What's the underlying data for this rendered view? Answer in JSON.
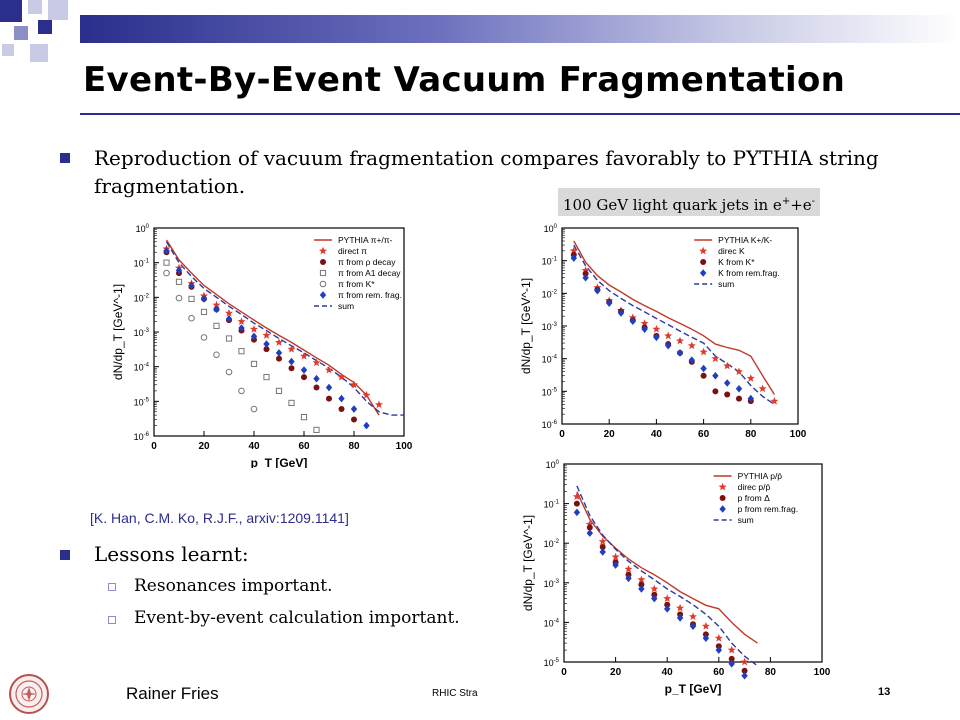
{
  "slide": {
    "title": "Event-By-Event Vacuum Fragmentation",
    "bullet1": "Reproduction of vacuum fragmentation compares favorably to PYTHIA string fragmentation.",
    "jet_label": "100 GeV light quark jets in e",
    "jet_label_sup1": "+",
    "jet_label_mid": "+e",
    "jet_label_sup2": "-",
    "reference": "[K. Han, C.M. Ko, R.J.F., arxiv:1209.1141]",
    "bullet2": "Lessons learnt:",
    "sub_items": [
      "Resonances important.",
      "Event-by-event calculation important."
    ],
    "footer_author": "Rainer Fries",
    "footer_center": "RHIC Stra",
    "page_number": "13",
    "accent_color": "#2b2e8c",
    "logo_icon": "university-seal-icon"
  },
  "chart_data": [
    {
      "type": "scatter",
      "ylabel": "dN/dp_T [GeV^-1]",
      "xlabel": "p_T [GeV]",
      "xlim": [
        0,
        100
      ],
      "ylim_exp": [
        -6,
        0
      ],
      "x_ticks": [
        "0",
        "20",
        "40",
        "60",
        "80",
        "100"
      ],
      "y_ticks": [
        "10^0",
        "10^-1",
        "10^-2",
        "10^-3",
        "10^-4",
        "10^-5",
        "10^-6"
      ],
      "legend": [
        "PYTHIA π+/π-",
        "direct π",
        "π from ρ decay",
        "π from A1 decay",
        "π from K*",
        "π from rem. frag.",
        "sum"
      ],
      "series": [
        {
          "name": "PYTHIA π+/π-",
          "style": "line",
          "color": "#c0392b",
          "x": [
            5,
            10,
            15,
            20,
            25,
            30,
            35,
            40,
            45,
            50,
            55,
            60,
            65,
            70,
            75,
            80,
            85,
            90
          ],
          "y": [
            0.45,
            0.12,
            0.05,
            0.022,
            0.012,
            0.0065,
            0.0038,
            0.0022,
            0.0013,
            0.0008,
            0.0005,
            0.0003,
            0.00018,
            0.00011,
            6e-05,
            3.5e-05,
            1.5e-05,
            4e-06
          ]
        },
        {
          "name": "sum",
          "style": "dash",
          "color": "#2b3a9c",
          "x": [
            5,
            10,
            15,
            20,
            25,
            30,
            35,
            40,
            45,
            50,
            55,
            60,
            65,
            70,
            75,
            80,
            85,
            90,
            95,
            100
          ],
          "y": [
            0.4,
            0.1,
            0.04,
            0.018,
            0.01,
            0.0055,
            0.0032,
            0.0018,
            0.0011,
            0.00065,
            0.0004,
            0.00025,
            0.00015,
            9e-05,
            5e-05,
            2.5e-05,
            1e-05,
            5e-06,
            4e-06,
            4e-06
          ]
        },
        {
          "name": "direct π",
          "style": "star",
          "color": "#e03a2a",
          "x": [
            5,
            10,
            15,
            20,
            25,
            30,
            35,
            40,
            45,
            50,
            55,
            60,
            65,
            70,
            75,
            80,
            85,
            90
          ],
          "y": [
            0.25,
            0.07,
            0.025,
            0.011,
            0.006,
            0.0035,
            0.002,
            0.0012,
            0.0008,
            0.0005,
            0.00032,
            0.0002,
            0.00013,
            8e-05,
            5e-05,
            3e-05,
            1.5e-05,
            8e-06
          ]
        },
        {
          "name": "π from ρ decay",
          "style": "circle",
          "color": "#7a1212",
          "x": [
            5,
            10,
            15,
            20,
            25,
            30,
            35,
            40,
            45,
            50,
            55,
            60,
            65,
            70,
            75,
            80
          ],
          "y": [
            0.2,
            0.05,
            0.02,
            0.009,
            0.0045,
            0.0022,
            0.0011,
            0.0006,
            0.00032,
            0.00017,
            9e-05,
            5e-05,
            2.5e-05,
            1.2e-05,
            6e-06,
            3e-06
          ]
        },
        {
          "name": "π from A1 decay",
          "style": "square",
          "color": "#777777",
          "x": [
            5,
            10,
            15,
            20,
            25,
            30,
            35,
            40,
            45,
            50,
            55,
            60,
            65
          ],
          "y": [
            0.1,
            0.028,
            0.009,
            0.0038,
            0.0015,
            0.00065,
            0.00028,
            0.00012,
            5e-05,
            2e-05,
            9e-06,
            3.5e-06,
            1.5e-06
          ]
        },
        {
          "name": "π from K*",
          "style": "ocircle",
          "color": "#777777",
          "x": [
            5,
            10,
            15,
            20,
            25,
            30,
            35,
            40
          ],
          "y": [
            0.05,
            0.0095,
            0.0025,
            0.0007,
            0.00022,
            7e-05,
            2e-05,
            6e-06
          ]
        },
        {
          "name": "π from rem. frag.",
          "style": "diamond",
          "color": "#1f3fbf",
          "x": [
            5,
            10,
            15,
            20,
            25,
            30,
            35,
            40,
            45,
            50,
            55,
            60,
            65,
            70,
            75,
            80,
            85
          ],
          "y": [
            0.22,
            0.06,
            0.022,
            0.009,
            0.0045,
            0.0024,
            0.0013,
            0.00075,
            0.00045,
            0.00025,
            0.00014,
            8e-05,
            4.5e-05,
            2.5e-05,
            1.2e-05,
            6e-06,
            2e-06
          ]
        }
      ]
    },
    {
      "type": "scatter",
      "ylabel": "dN/dp_T [GeV^-1]",
      "xlim": [
        0,
        100
      ],
      "ylim_exp": [
        -6,
        0
      ],
      "x_ticks": [
        "0",
        "20",
        "40",
        "60",
        "80",
        "100"
      ],
      "y_ticks": [
        "10^0",
        "10^-1",
        "10^-2",
        "10^-3",
        "10^-4",
        "10^-5",
        "10^-6"
      ],
      "legend": [
        "PYTHIA K+/K-",
        "direc K",
        "K from K*",
        "K from rem.frag.",
        "sum"
      ],
      "series": [
        {
          "name": "PYTHIA K+/K-",
          "style": "line",
          "color": "#c0392b",
          "x": [
            5,
            10,
            15,
            20,
            25,
            30,
            35,
            40,
            45,
            50,
            55,
            60,
            65,
            70,
            75,
            80,
            85,
            90
          ],
          "y": [
            0.4,
            0.09,
            0.035,
            0.018,
            0.011,
            0.0065,
            0.0042,
            0.0028,
            0.0018,
            0.0012,
            0.0008,
            0.0005,
            0.00028,
            0.00022,
            0.00018,
            0.00012,
            3e-05,
            8e-06
          ]
        },
        {
          "name": "sum",
          "style": "dash",
          "color": "#2b3a9c",
          "x": [
            5,
            10,
            15,
            20,
            25,
            30,
            35,
            40,
            45,
            50,
            55,
            60,
            65,
            70,
            75,
            80,
            85,
            90
          ],
          "y": [
            0.3,
            0.07,
            0.025,
            0.012,
            0.007,
            0.0042,
            0.0027,
            0.0017,
            0.0011,
            0.0007,
            0.00045,
            0.0003,
            0.00012,
            7e-05,
            4e-05,
            1.5e-05,
            7e-06,
            4e-06
          ]
        },
        {
          "name": "direc K",
          "style": "star",
          "color": "#e03a2a",
          "x": [
            5,
            10,
            15,
            20,
            25,
            30,
            35,
            40,
            45,
            50,
            55,
            60,
            65,
            70,
            75,
            80,
            85,
            90
          ],
          "y": [
            0.2,
            0.05,
            0.015,
            0.006,
            0.003,
            0.0018,
            0.0012,
            0.0008,
            0.0005,
            0.00035,
            0.00025,
            0.00016,
            0.0001,
            6e-05,
            4e-05,
            2.5e-05,
            1.2e-05,
            5e-06
          ]
        },
        {
          "name": "K from K*",
          "style": "circle",
          "color": "#7a1212",
          "x": [
            5,
            10,
            15,
            20,
            25,
            30,
            35,
            40,
            45,
            50,
            55,
            60,
            65,
            70,
            75,
            80
          ],
          "y": [
            0.15,
            0.04,
            0.013,
            0.0055,
            0.0028,
            0.0015,
            0.0009,
            0.0005,
            0.00028,
            0.00015,
            8e-05,
            3e-05,
            1e-05,
            8e-06,
            6e-06,
            5e-06
          ]
        },
        {
          "name": "K from rem.frag.",
          "style": "diamond",
          "color": "#1f3fbf",
          "x": [
            5,
            10,
            15,
            20,
            25,
            30,
            35,
            40,
            45,
            50,
            55,
            60,
            65,
            70,
            75,
            80
          ],
          "y": [
            0.12,
            0.03,
            0.012,
            0.005,
            0.0025,
            0.0014,
            0.0008,
            0.00045,
            0.00025,
            0.00015,
            9e-05,
            5e-05,
            3e-05,
            1.8e-05,
            1.2e-05,
            6e-06
          ]
        }
      ]
    },
    {
      "type": "scatter",
      "ylabel": "dN/dp_T [GeV^-1]",
      "xlabel": "p_T [GeV]",
      "xlim": [
        0,
        100
      ],
      "ylim_exp": [
        -5,
        0
      ],
      "x_ticks": [
        "0",
        "20",
        "40",
        "60",
        "80",
        "100"
      ],
      "y_ticks": [
        "10^0",
        "10^-1",
        "10^-2",
        "10^-3",
        "10^-4",
        "10^-5"
      ],
      "legend": [
        "PYTHIA p/p̄",
        "direc p/p̄",
        "p from Δ",
        "p from rem.frag.",
        "sum"
      ],
      "series": [
        {
          "name": "PYTHIA p/p̄",
          "style": "line",
          "color": "#c0392b",
          "x": [
            5,
            10,
            15,
            20,
            25,
            30,
            35,
            40,
            45,
            50,
            55,
            60,
            65,
            70,
            75
          ],
          "y": [
            0.2,
            0.04,
            0.015,
            0.0075,
            0.004,
            0.0024,
            0.0016,
            0.001,
            0.0006,
            0.0004,
            0.00027,
            0.00022,
            0.0001,
            5e-05,
            3e-05
          ]
        },
        {
          "name": "sum",
          "style": "dash",
          "color": "#2b3a9c",
          "x": [
            5,
            10,
            15,
            20,
            25,
            30,
            35,
            40,
            45,
            50,
            55,
            60,
            65,
            70,
            75
          ],
          "y": [
            0.28,
            0.05,
            0.016,
            0.007,
            0.0035,
            0.002,
            0.0012,
            0.0007,
            0.00045,
            0.00028,
            0.00016,
            8e-05,
            3e-05,
            1.4e-05,
            8e-06
          ]
        },
        {
          "name": "direc p/p̄",
          "style": "star",
          "color": "#e03a2a",
          "x": [
            5,
            10,
            15,
            20,
            25,
            30,
            35,
            40,
            45,
            50,
            55,
            60,
            65,
            70
          ],
          "y": [
            0.15,
            0.03,
            0.011,
            0.0045,
            0.0022,
            0.0012,
            0.0007,
            0.0004,
            0.00023,
            0.00014,
            8e-05,
            4e-05,
            2e-05,
            1e-05
          ]
        },
        {
          "name": "p from Δ",
          "style": "circle",
          "color": "#7a1212",
          "x": [
            5,
            10,
            15,
            20,
            25,
            30,
            35,
            40,
            45,
            50,
            55,
            60,
            65,
            70
          ],
          "y": [
            0.1,
            0.025,
            0.008,
            0.0033,
            0.0016,
            0.0009,
            0.0005,
            0.00028,
            0.00016,
            9e-05,
            5e-05,
            2.5e-05,
            1.2e-05,
            6e-06
          ]
        },
        {
          "name": "p from rem.frag.",
          "style": "diamond",
          "color": "#1f3fbf",
          "x": [
            5,
            10,
            15,
            20,
            25,
            30,
            35,
            40,
            45,
            50,
            55,
            60,
            65,
            70
          ],
          "y": [
            0.06,
            0.018,
            0.006,
            0.0028,
            0.0013,
            0.0007,
            0.0004,
            0.00022,
            0.00013,
            8e-05,
            4e-05,
            2e-05,
            9e-06,
            4.5e-06
          ]
        }
      ]
    }
  ]
}
